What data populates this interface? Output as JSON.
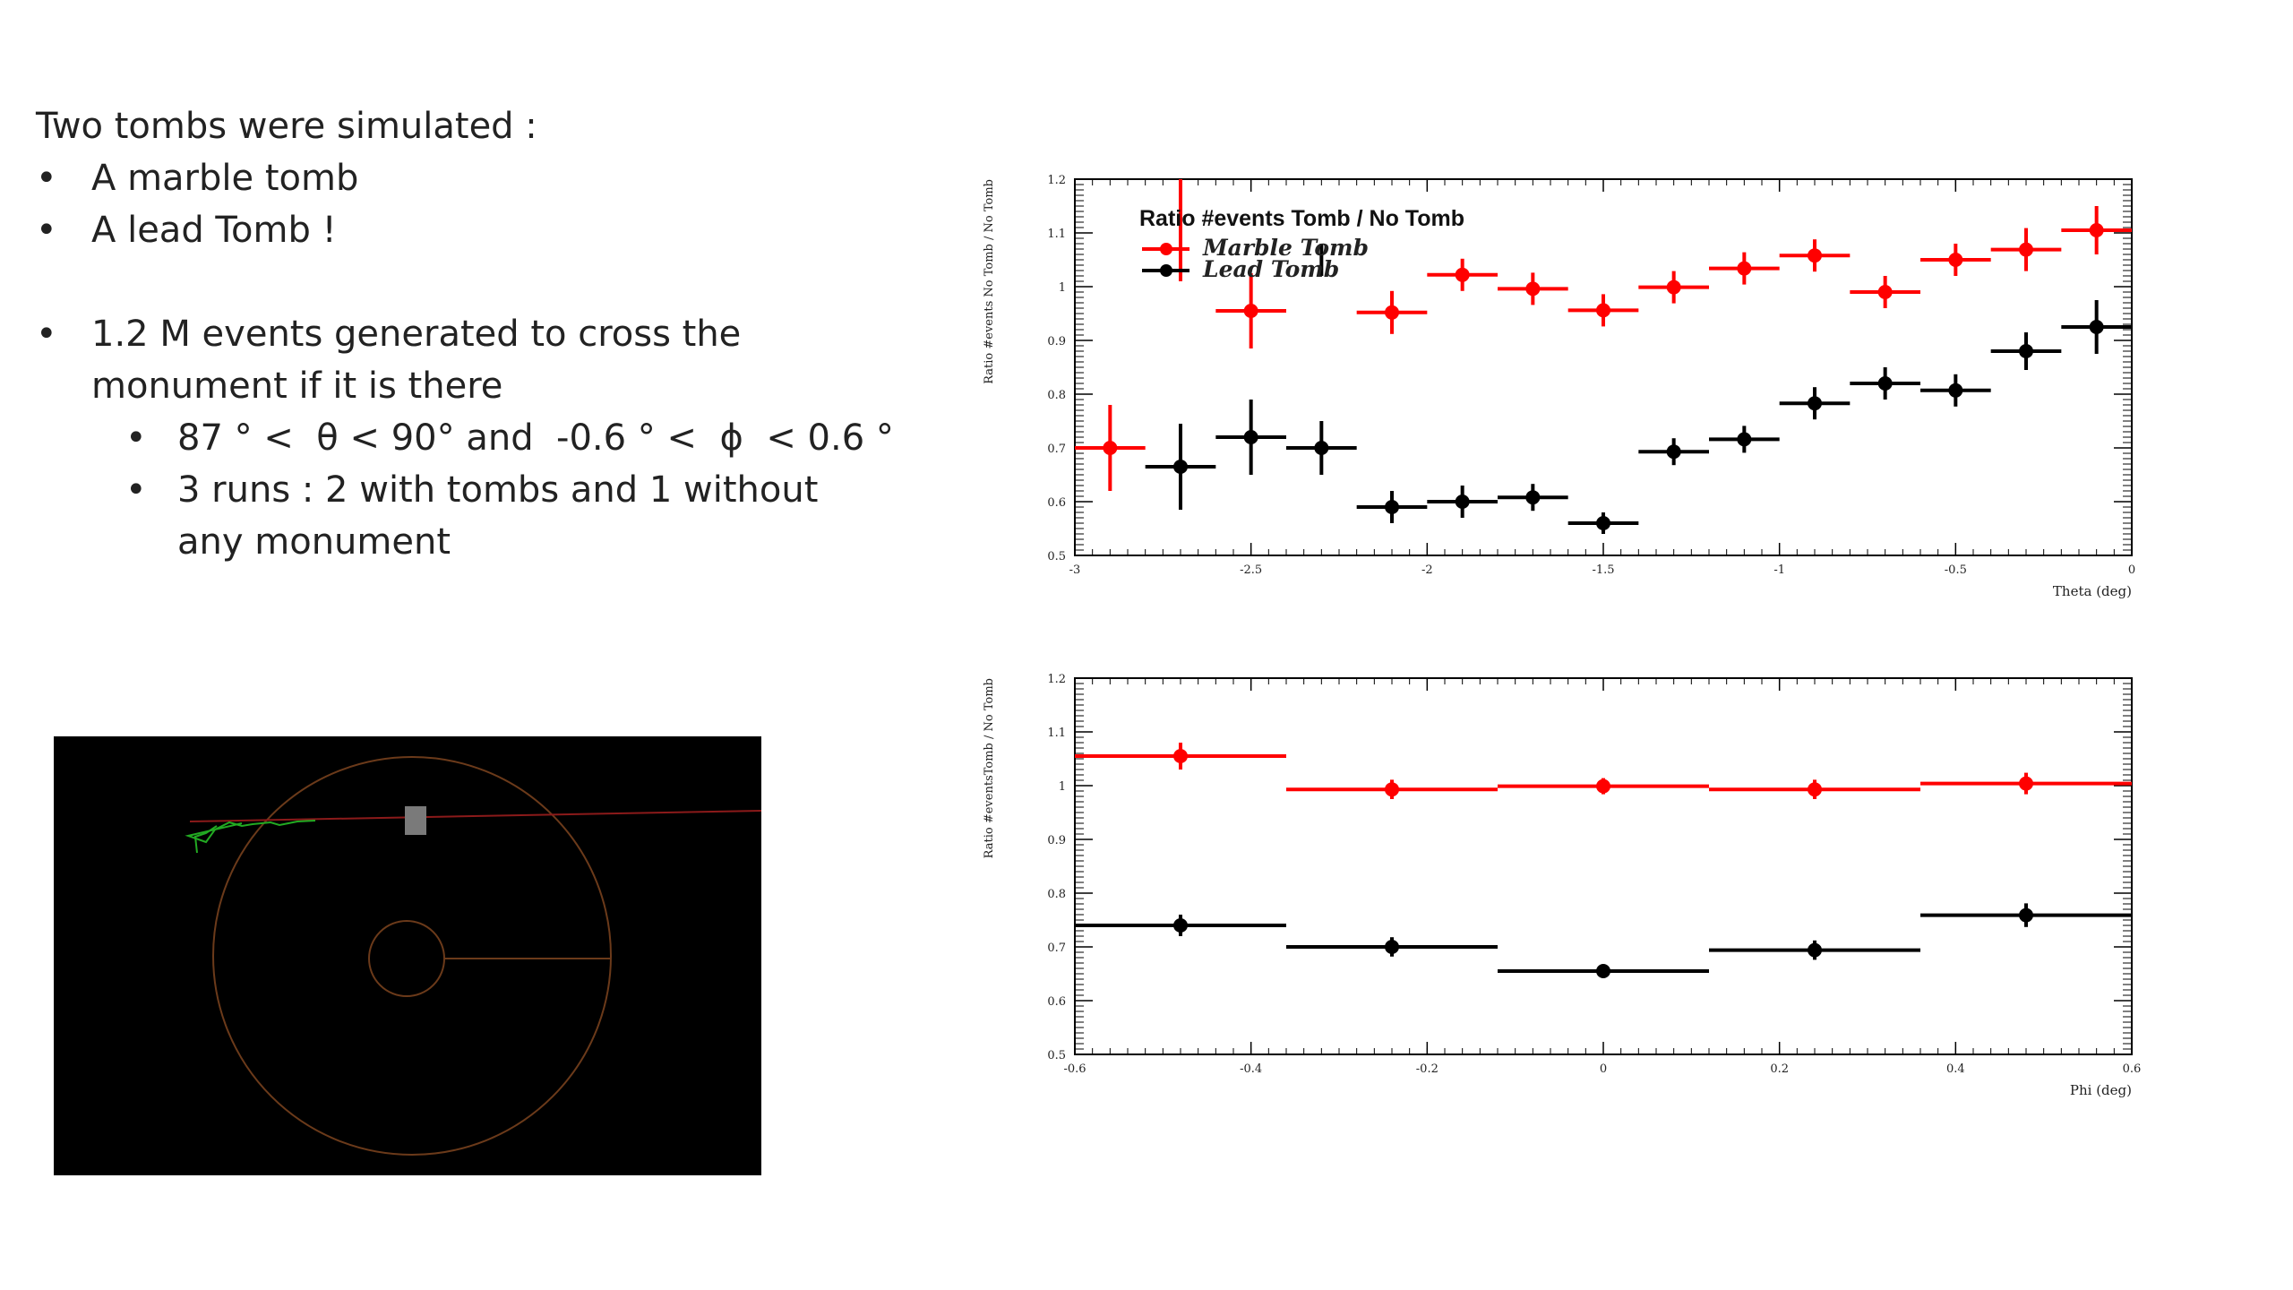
{
  "slide": {
    "intro": "Two tombs were simulated :",
    "bullets": [
      "A marble tomb",
      "A lead Tomb !"
    ],
    "events": "1.2 M events generated to cross the",
    "events_cont": "monument if it is there",
    "cut_theta_lo": "87 °",
    "theta_symbol": "θ",
    "cut_theta_hi": "< 90° and",
    "cut_phi_lo": "-0.6 ° <",
    "phi_symbol": "ϕ",
    "cut_phi_hi": "< 0.6 °",
    "runs": "3 runs : 2 with tombs and 1 without",
    "runs_cont": "any monument"
  },
  "colors": {
    "marble": "#ff0000",
    "lead": "#000000"
  },
  "chart_data": [
    {
      "type": "scatter",
      "title": "Ratio #events Tomb / No Tomb",
      "xlabel": "Theta (deg)",
      "ylabel": "Ratio #events No Tomb / No Tomb",
      "xlim": [
        -3,
        0
      ],
      "ylim": [
        0.5,
        1.2
      ],
      "xticks": [
        "-3",
        "-2.5",
        "-2",
        "-1.5",
        "-1",
        "-0.5",
        "0"
      ],
      "yticks": [
        "0.5",
        "0.6",
        "0.7",
        "0.8",
        "0.9",
        "1",
        "1.1",
        "1.2"
      ],
      "legend_position": "top-left",
      "series": [
        {
          "name": "Marble Tomb",
          "color": "#ff0000",
          "x": [
            -2.9,
            -2.5,
            -2.1,
            -1.9,
            -1.7,
            -1.5,
            -1.3,
            -1.1,
            -0.9,
            -0.7,
            -0.5,
            -0.3,
            -0.1
          ],
          "xerr": 0.1,
          "y": [
            0.7,
            0.955,
            0.952,
            1.022,
            0.996,
            0.956,
            0.999,
            1.034,
            1.058,
            0.99,
            1.05,
            1.069,
            1.105
          ],
          "yerr": [
            0.08,
            0.07,
            0.04,
            0.03,
            0.03,
            0.03,
            0.03,
            0.03,
            0.03,
            0.03,
            0.03,
            0.04,
            0.045
          ]
        },
        {
          "name": "Lead Tomb",
          "color": "#000000",
          "x": [
            -2.7,
            -2.5,
            -2.3,
            -2.1,
            -1.9,
            -1.7,
            -1.5,
            -1.3,
            -1.1,
            -0.9,
            -0.7,
            -0.5,
            -0.3,
            -0.1
          ],
          "xerr": 0.1,
          "y": [
            0.665,
            0.72,
            0.7,
            0.59,
            0.6,
            0.608,
            0.56,
            0.693,
            0.716,
            0.783,
            0.82,
            0.807,
            0.88,
            0.925
          ],
          "yerr": [
            0.08,
            0.07,
            0.05,
            0.03,
            0.03,
            0.025,
            0.02,
            0.025,
            0.025,
            0.03,
            0.03,
            0.03,
            0.035,
            0.05
          ]
        }
      ],
      "stray_marks": [
        {
          "series": "Marble Tomb",
          "x": -2.7,
          "y_from": 1.01,
          "y_to": 1.2
        },
        {
          "series": "Lead Tomb",
          "x": -2.3,
          "y_from": 1.02,
          "y_to": 1.08
        }
      ]
    },
    {
      "type": "scatter",
      "title": "",
      "xlabel": "Phi (deg)",
      "ylabel": "Ratio #eventsTomb / No Tomb",
      "xlim": [
        -0.6,
        0.6
      ],
      "ylim": [
        0.5,
        1.2
      ],
      "xticks": [
        "-0.6",
        "-0.4",
        "-0.2",
        "0",
        "0.2",
        "0.4",
        "0.6"
      ],
      "yticks": [
        "0.5",
        "0.6",
        "0.7",
        "0.8",
        "0.9",
        "1",
        "1.1",
        "1.2"
      ],
      "series": [
        {
          "name": "Marble Tomb",
          "color": "#ff0000",
          "x": [
            -0.48,
            -0.24,
            0.0,
            0.24,
            0.48
          ],
          "xerr": 0.12,
          "y": [
            1.055,
            0.993,
            0.999,
            0.993,
            1.004
          ],
          "yerr": [
            0.025,
            0.018,
            0.015,
            0.018,
            0.02
          ]
        },
        {
          "name": "Lead Tomb",
          "color": "#000000",
          "x": [
            -0.48,
            -0.24,
            0.0,
            0.24,
            0.48
          ],
          "xerr": 0.12,
          "y": [
            0.74,
            0.7,
            0.655,
            0.694,
            0.759
          ],
          "yerr": [
            0.02,
            0.018,
            0.012,
            0.018,
            0.022
          ]
        }
      ]
    }
  ],
  "event_display": {
    "background": "#000000",
    "detector_color": "#6b3a1a",
    "track_color": "#8b1a1a",
    "shower_color": "#22aa22",
    "tomb_color": "#7a7a7a"
  }
}
